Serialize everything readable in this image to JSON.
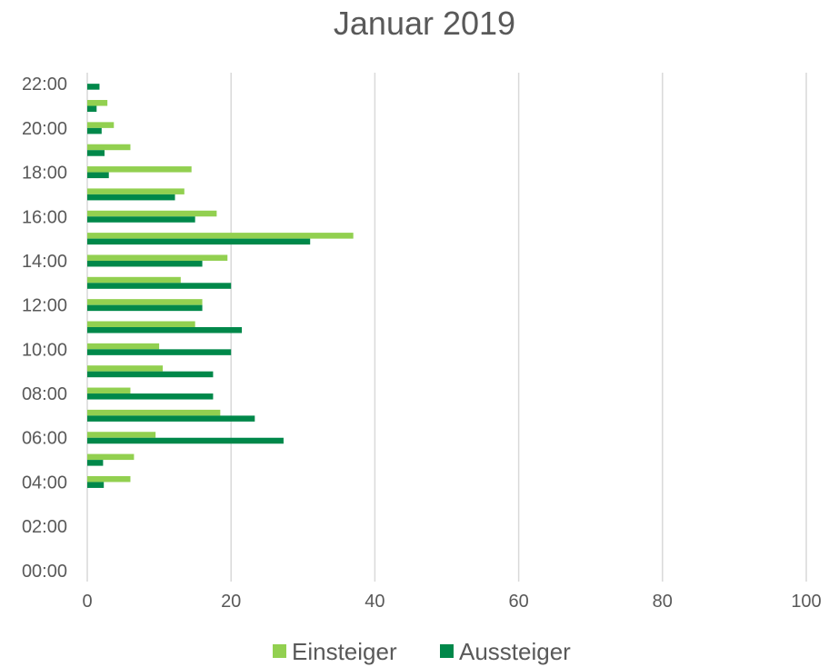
{
  "chart_data": {
    "type": "bar",
    "orientation": "horizontal",
    "title": "Januar 2019",
    "xlabel": "",
    "ylabel": "",
    "xlim": [
      0,
      100
    ],
    "x_ticks": [
      "0",
      "20",
      "40",
      "60",
      "80",
      "100"
    ],
    "categories": [
      "00:00",
      "01:00",
      "02:00",
      "03:00",
      "04:00",
      "05:00",
      "06:00",
      "07:00",
      "08:00",
      "09:00",
      "10:00",
      "11:00",
      "12:00",
      "13:00",
      "14:00",
      "15:00",
      "16:00",
      "17:00",
      "18:00",
      "19:00",
      "20:00",
      "21:00",
      "22:00"
    ],
    "category_tick_labels": [
      "00:00",
      "02:00",
      "04:00",
      "06:00",
      "08:00",
      "10:00",
      "12:00",
      "14:00",
      "16:00",
      "18:00",
      "20:00",
      "22:00"
    ],
    "series": [
      {
        "name": "Einsteiger",
        "color": "#92d050",
        "values": [
          0,
          0,
          0,
          0,
          6,
          6.5,
          9.5,
          18.5,
          6,
          10.5,
          10,
          15,
          16,
          13,
          19.5,
          37,
          18,
          13.5,
          14.5,
          6,
          3.7,
          2.8,
          0
        ]
      },
      {
        "name": "Aussteiger",
        "color": "#00884a",
        "values": [
          0,
          0,
          0,
          0,
          2.3,
          2.2,
          27.3,
          23.3,
          17.5,
          17.5,
          20,
          21.5,
          16,
          20,
          16,
          31,
          15,
          12.2,
          3,
          2.4,
          2,
          1.3,
          1.7
        ]
      }
    ],
    "grid": true,
    "legend_position": "bottom"
  }
}
